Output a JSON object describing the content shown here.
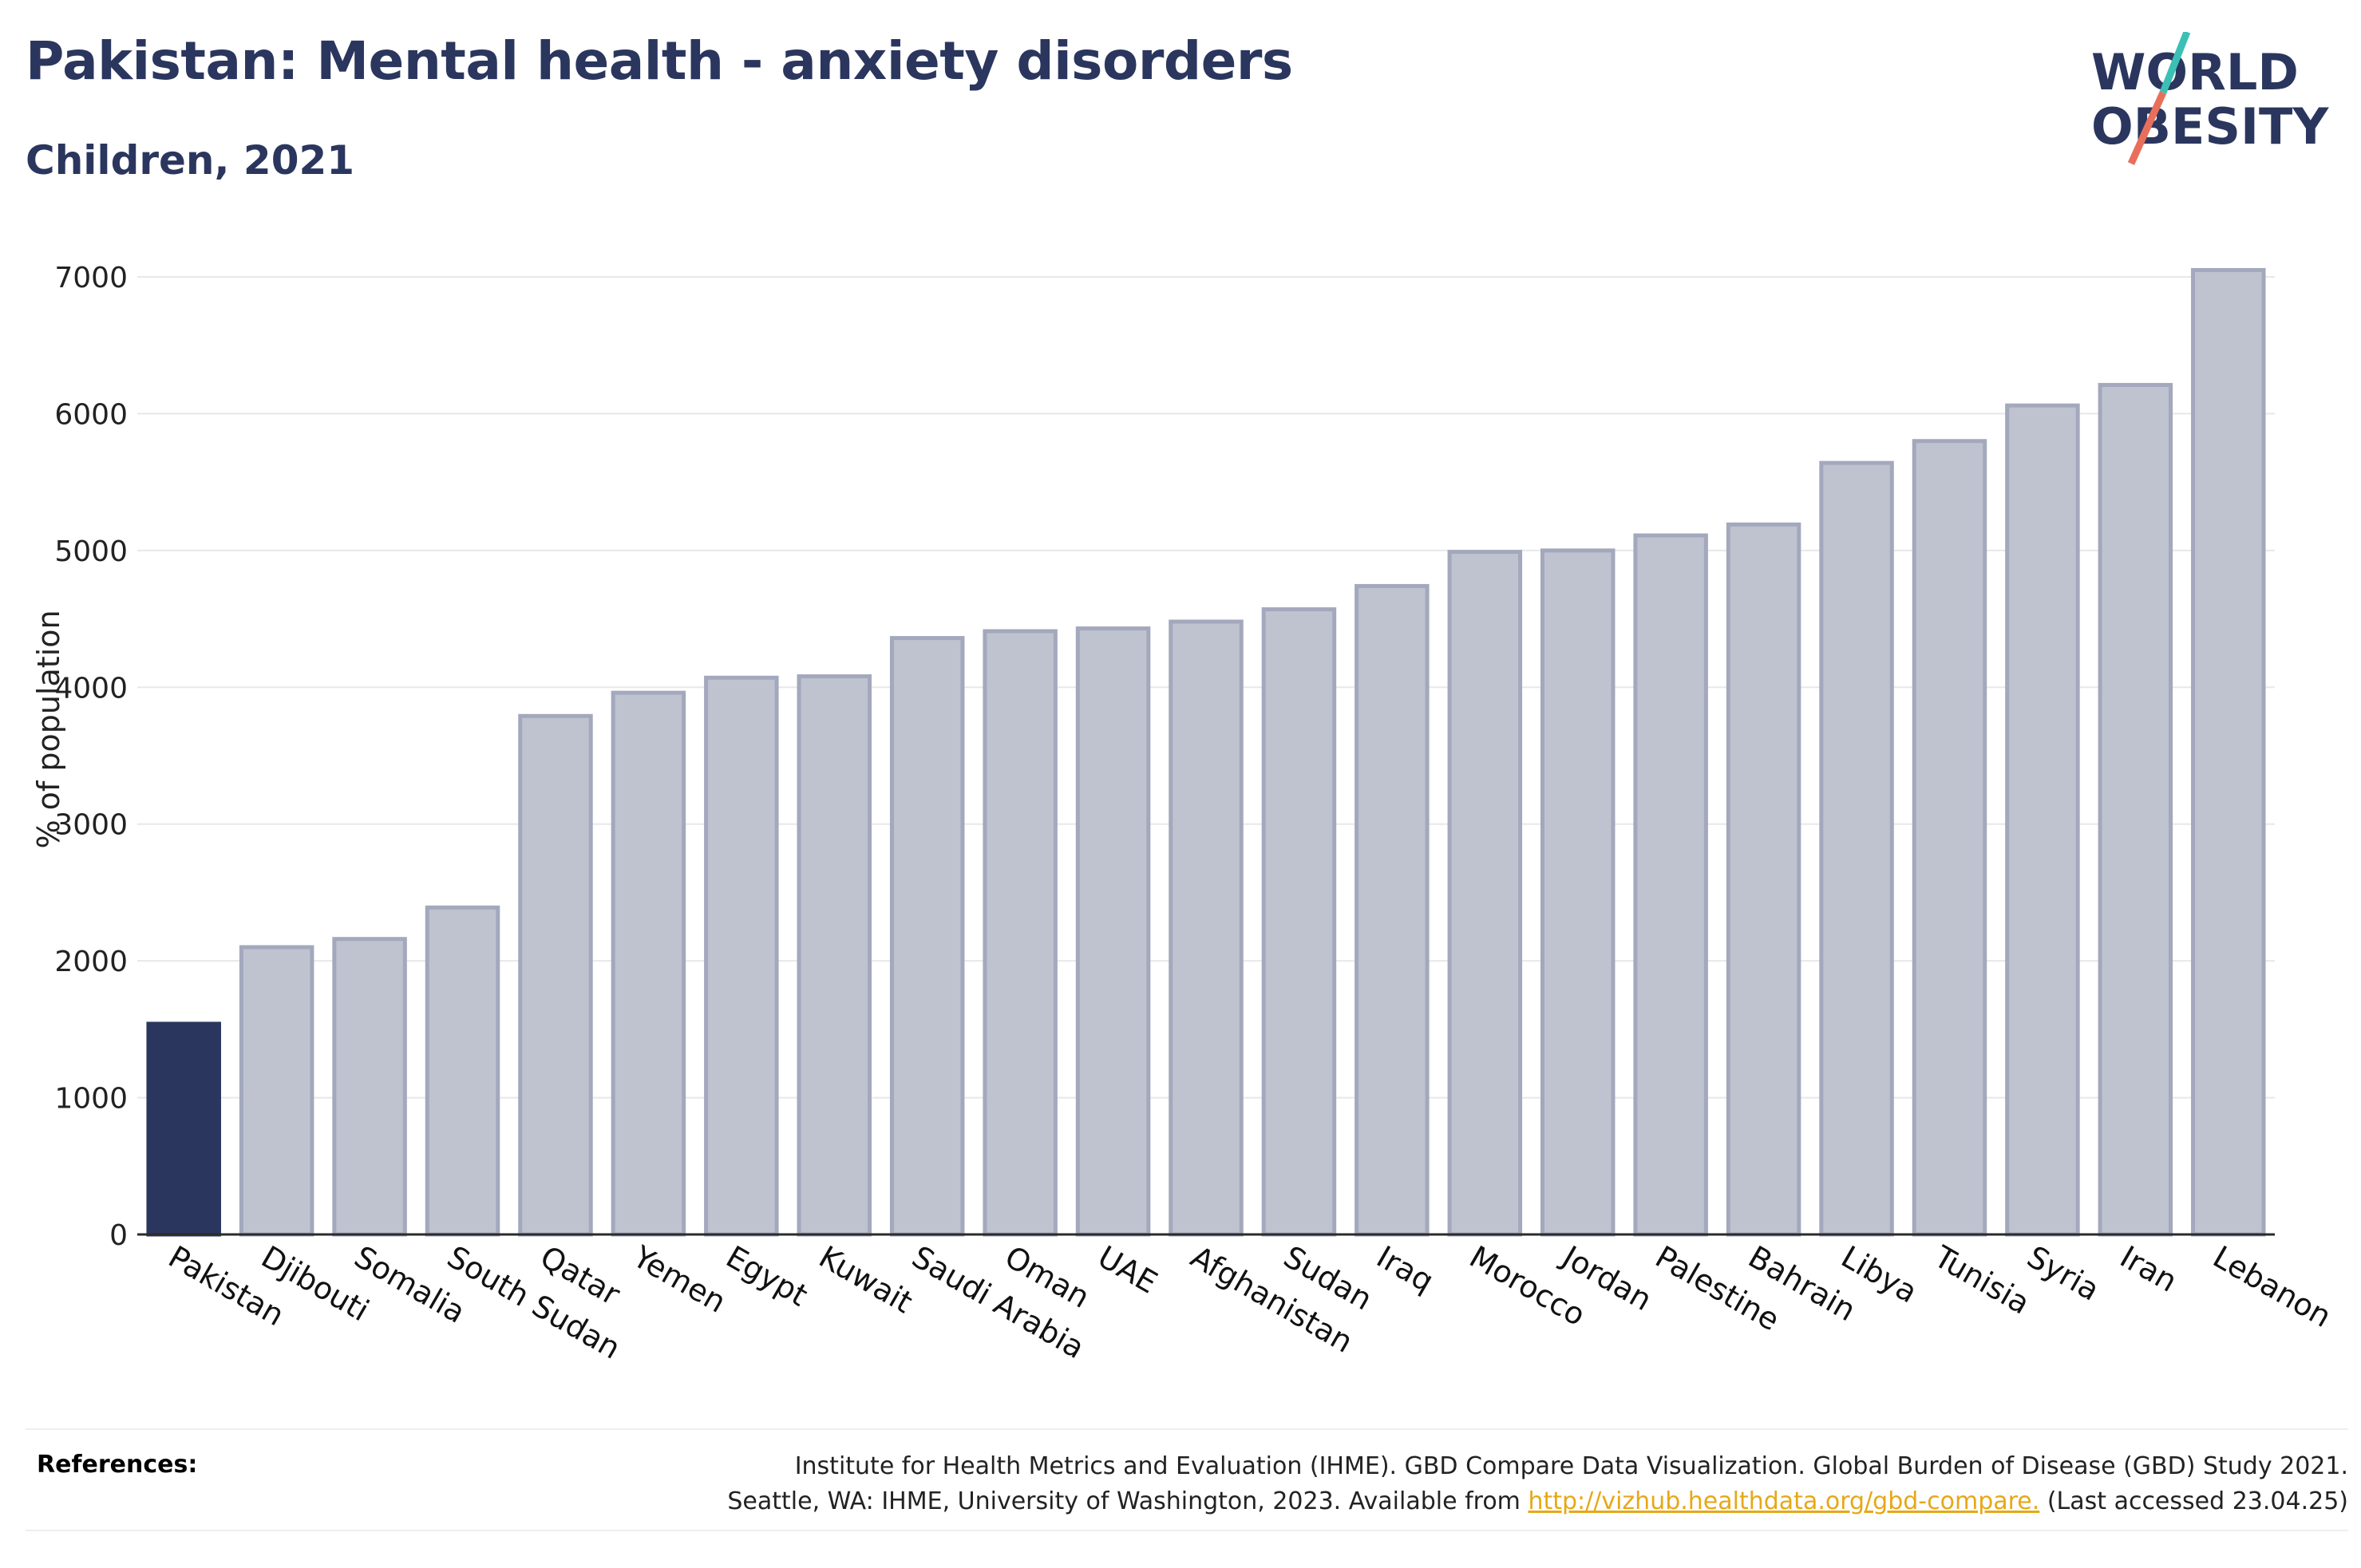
{
  "header": {
    "title": "Pakistan: Mental health - anxiety disorders",
    "subtitle": "Children, 2021"
  },
  "logo": {
    "line1": "WORLD",
    "line2": "OBESITY",
    "colors": {
      "text": "#2b365e",
      "slash_top": "#3cc0b5",
      "slash_bottom": "#e86f5b"
    }
  },
  "chart_data": {
    "type": "bar",
    "ylabel": "% of population",
    "xlabel": "",
    "ylim": [
      0,
      7000
    ],
    "yticks": [
      0,
      1000,
      2000,
      3000,
      4000,
      5000,
      6000,
      7000
    ],
    "grid": true,
    "highlight": "Pakistan",
    "colors": {
      "highlight": "#2b365e",
      "bar_fill": "#bfc3d0",
      "bar_stroke": "#a3a8bc",
      "grid": "#e8e8ec"
    },
    "categories": [
      "Pakistan",
      "Djibouti",
      "Somalia",
      "South Sudan",
      "Qatar",
      "Yemen",
      "Egypt",
      "Kuwait",
      "Saudi Arabia",
      "Oman",
      "UAE",
      "Afghanistan",
      "Sudan",
      "Iraq",
      "Morocco",
      "Jordan",
      "Palestine",
      "Bahrain",
      "Libya",
      "Tunisia",
      "Syria",
      "Iran",
      "Lebanon"
    ],
    "values": [
      1540,
      2100,
      2160,
      2390,
      3790,
      3960,
      4070,
      4080,
      4360,
      4410,
      4430,
      4480,
      4570,
      4740,
      4990,
      5000,
      5110,
      5190,
      5640,
      5800,
      6060,
      6210,
      7050
    ]
  },
  "references": {
    "label": "References:",
    "line1": "Institute for Health Metrics and Evaluation (IHME). GBD Compare Data Visualization. Global Burden of Disease (GBD) Study 2021.",
    "line2_prefix": "Seattle, WA: IHME, University of Washington, 2023. Available from ",
    "link": "http://vizhub.healthdata.org/gbd-compare.",
    "line2_suffix": " (Last accessed 23.04.25)"
  }
}
